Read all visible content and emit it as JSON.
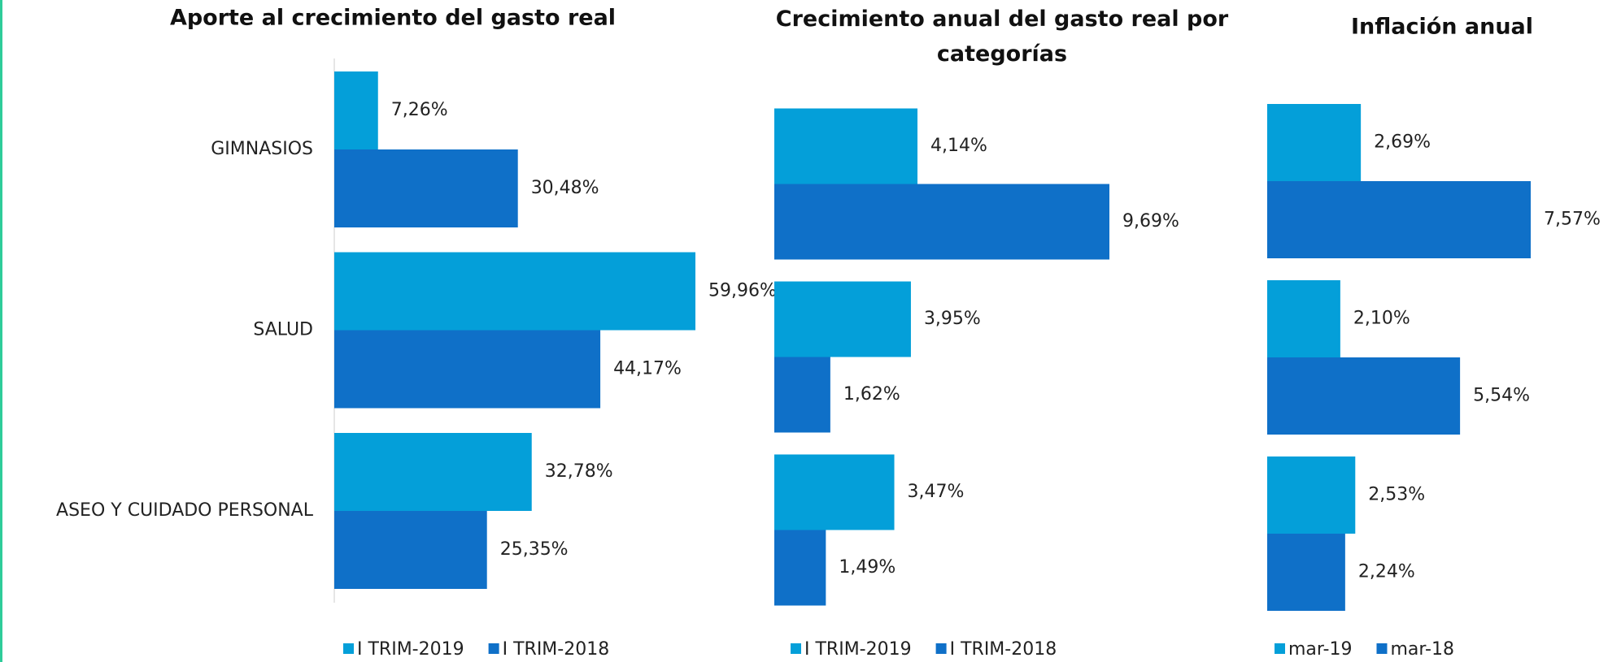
{
  "chart_data": [
    {
      "type": "bar",
      "orientation": "horizontal",
      "title": "Aporte al crecimiento del gasto real",
      "categories": [
        "GIMNASIOS",
        "SALUD",
        "ASEO Y CUIDADO PERSONAL"
      ],
      "series": [
        {
          "name": "I TRIM-2019",
          "color": "#049fd9",
          "values": [
            7.26,
            59.96,
            32.78
          ],
          "value_labels": [
            "7,26%",
            "59,96%",
            "32,78%"
          ]
        },
        {
          "name": "I TRIM-2018",
          "color": "#0f70c8",
          "values": [
            30.48,
            44.17,
            25.35
          ],
          "value_labels": [
            "30,48%",
            "44,17%",
            "25,35%"
          ]
        }
      ]
    },
    {
      "type": "bar",
      "orientation": "horizontal",
      "title": "Crecimiento anual del gasto real por categorías",
      "categories": [
        null,
        null,
        null
      ],
      "series": [
        {
          "name": "I TRIM-2019",
          "color": "#049fd9",
          "values": [
            4.14,
            3.95,
            3.47
          ],
          "value_labels": [
            "4,14%",
            "3,95%",
            "3,47%"
          ]
        },
        {
          "name": "I TRIM-2018",
          "color": "#0f70c8",
          "values": [
            9.69,
            1.62,
            1.49
          ],
          "value_labels": [
            "9,69%",
            "1,62%",
            "1,49%"
          ]
        }
      ]
    },
    {
      "type": "bar",
      "orientation": "horizontal",
      "title": "Inflación anual",
      "categories": [
        null,
        null,
        null
      ],
      "series": [
        {
          "name": "mar-19",
          "color": "#049fd9",
          "values": [
            2.69,
            2.1,
            2.53
          ],
          "value_labels": [
            "2,69%",
            "2,10%",
            "2,53%"
          ]
        },
        {
          "name": "mar-18",
          "color": "#0f70c8",
          "values": [
            7.57,
            5.54,
            2.24
          ],
          "value_labels": [
            "7,57%",
            "5,54%",
            "2,24%"
          ]
        }
      ]
    }
  ]
}
